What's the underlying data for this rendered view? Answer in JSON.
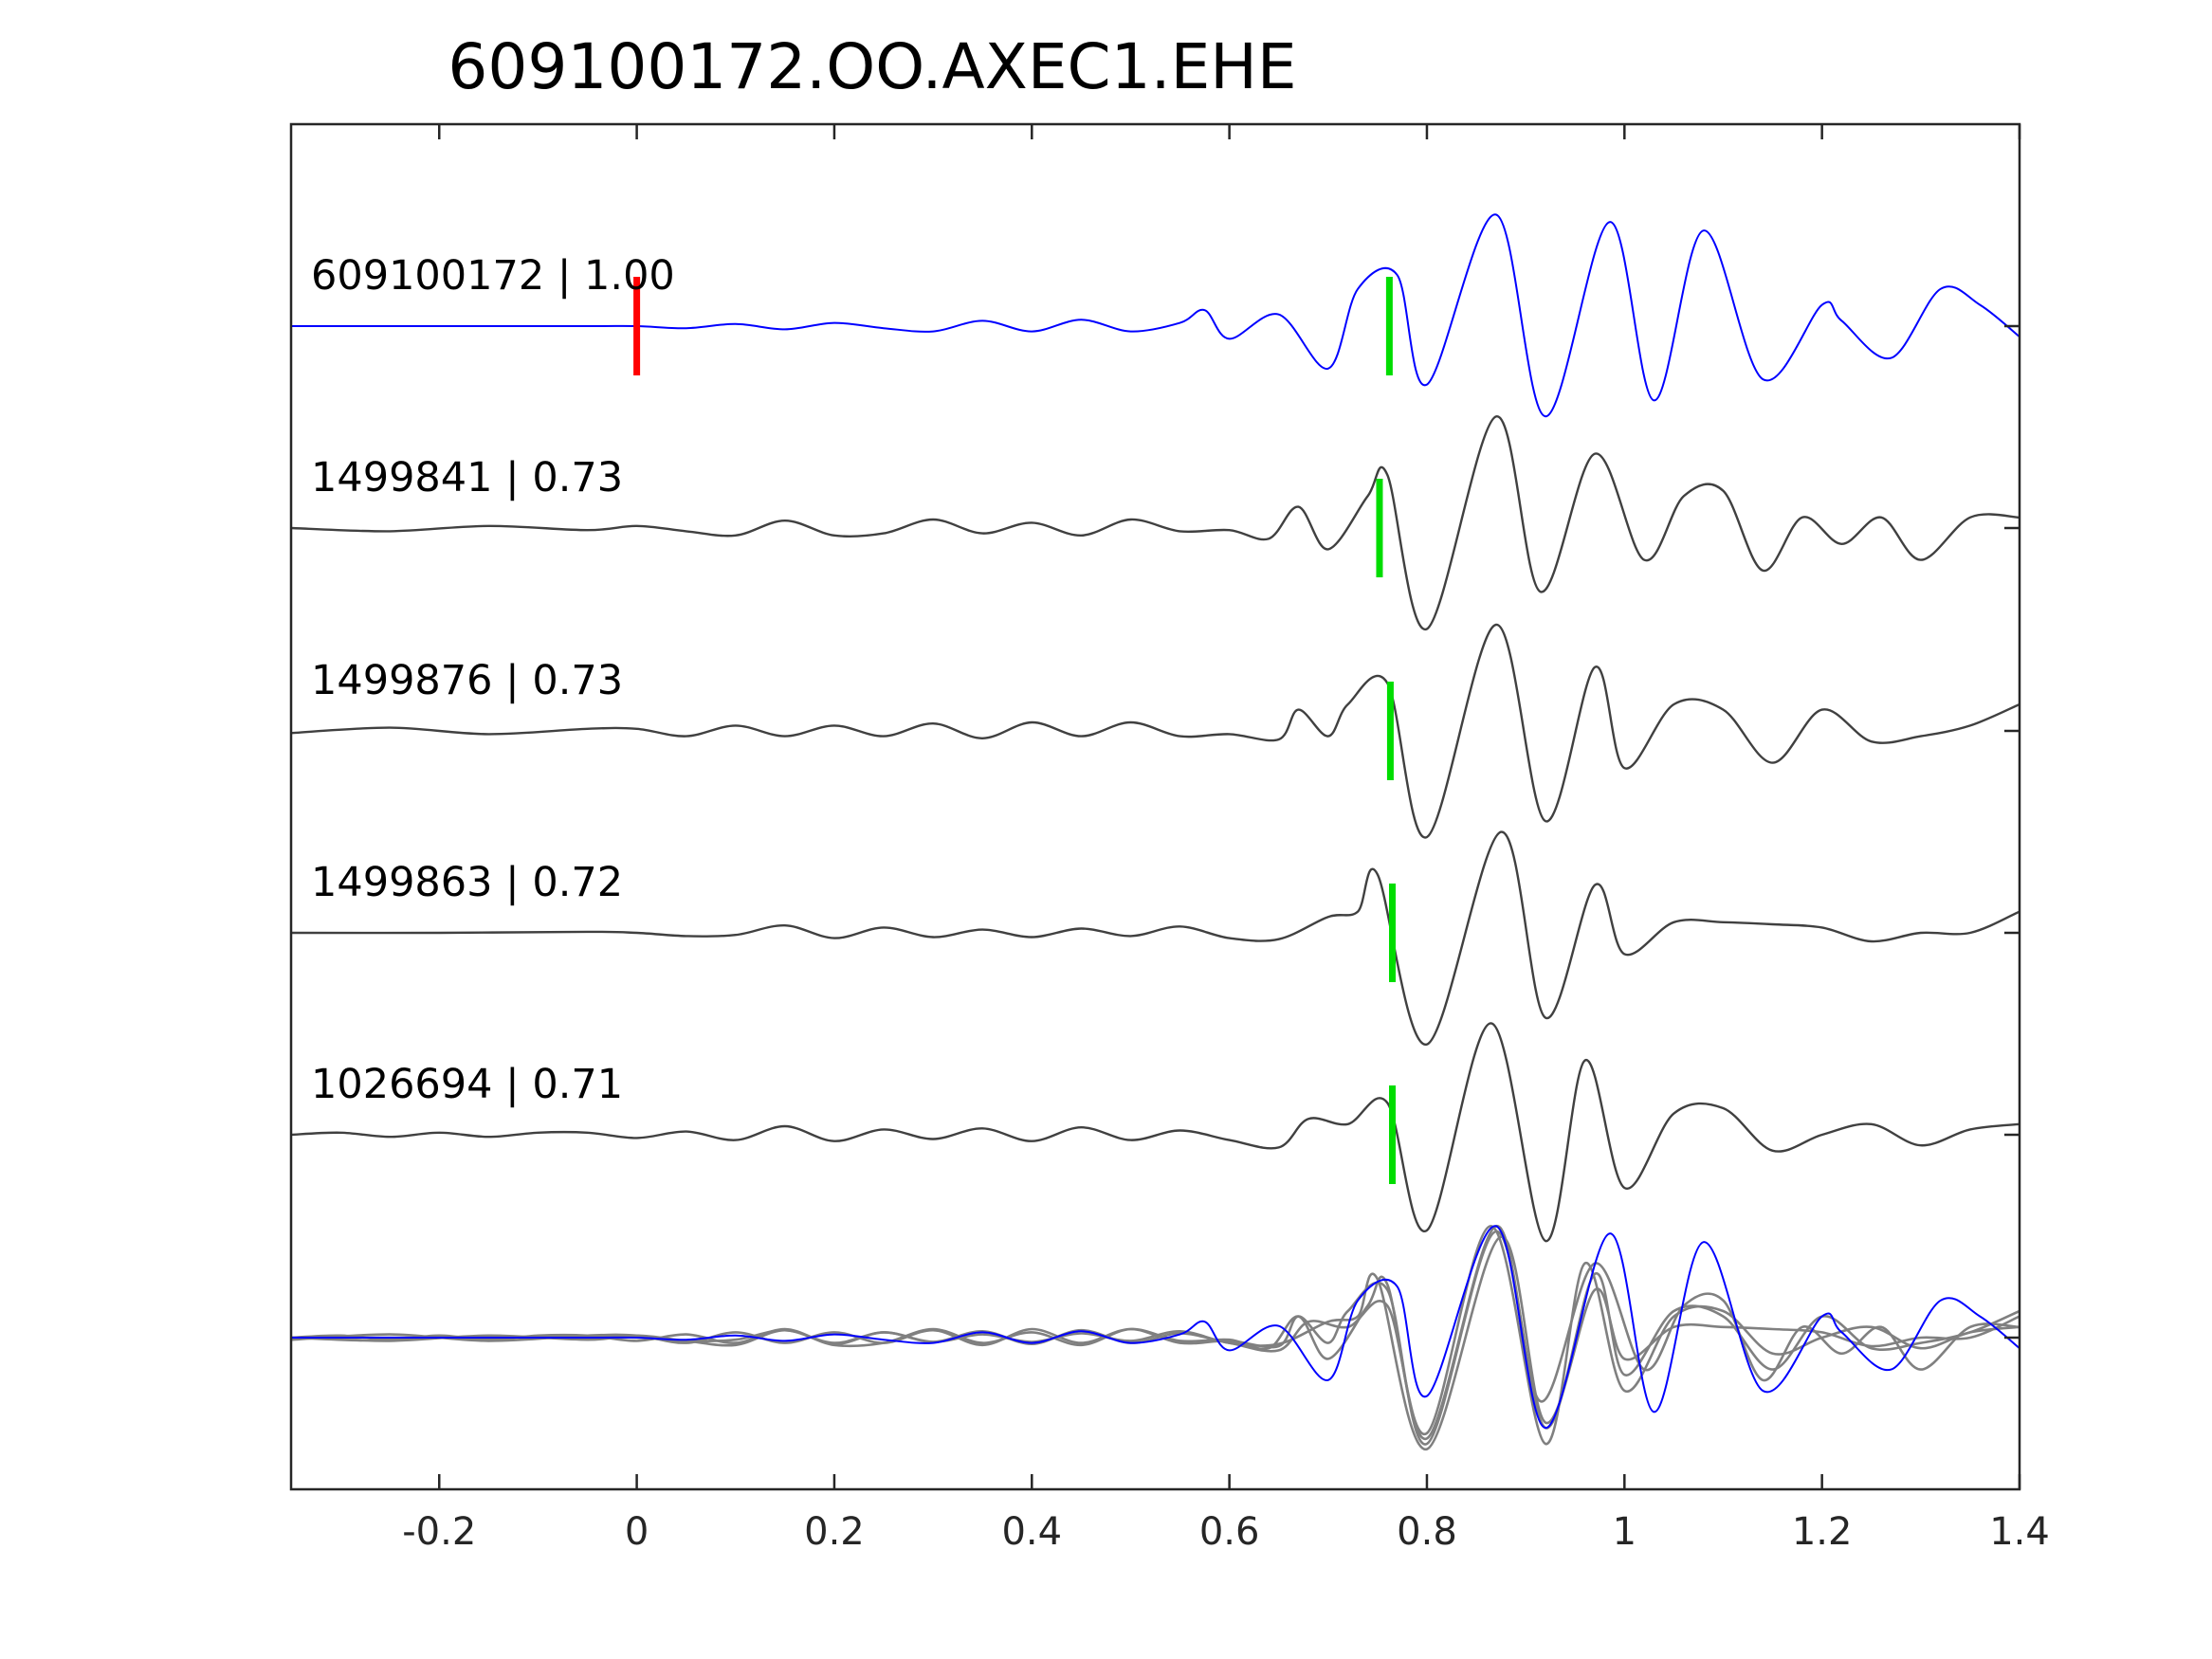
{
  "chart_data": {
    "type": "line",
    "title": "609100172.OO.AXEC1.EHE",
    "xlabel": "",
    "ylabel": "",
    "xlim": [
      -0.35,
      1.4
    ],
    "xticks": [
      -0.2,
      0,
      0.2,
      0.4,
      0.6,
      0.8,
      1,
      1.2,
      1.4
    ],
    "xtick_labels": [
      "-0.2",
      "0",
      "0.2",
      "0.4",
      "0.6",
      "0.8",
      "1",
      "1.2",
      "1.4"
    ],
    "grid": false,
    "legend": "none",
    "colors": {
      "template": "#0000ff",
      "match": "#404040",
      "overlay_match": "#808080",
      "origin_marker": "#ff0000",
      "pick_marker": "#00dd00",
      "axis": "#262626"
    },
    "traces": [
      {
        "label": "609100172 | 1.00",
        "id": "609100172",
        "cc": 1.0,
        "color": "template",
        "pick_time": 0.762,
        "origin_time": 0.0,
        "points": [
          [
            -0.35,
            0
          ],
          [
            -0.2,
            0
          ],
          [
            -0.05,
            0
          ],
          [
            0,
            0
          ],
          [
            0.05,
            -0.02
          ],
          [
            0.1,
            0.02
          ],
          [
            0.15,
            -0.03
          ],
          [
            0.2,
            0.03
          ],
          [
            0.25,
            -0.02
          ],
          [
            0.3,
            -0.05
          ],
          [
            0.35,
            0.05
          ],
          [
            0.4,
            -0.05
          ],
          [
            0.45,
            0.06
          ],
          [
            0.5,
            -0.05
          ],
          [
            0.55,
            0.03
          ],
          [
            0.575,
            0.15
          ],
          [
            0.6,
            -0.12
          ],
          [
            0.65,
            0.11
          ],
          [
            0.7,
            -0.4
          ],
          [
            0.73,
            0.35
          ],
          [
            0.77,
            0.48
          ],
          [
            0.8,
            -0.55
          ],
          [
            0.87,
            1.05
          ],
          [
            0.92,
            -0.85
          ],
          [
            0.985,
            0.98
          ],
          [
            1.03,
            -0.7
          ],
          [
            1.08,
            0.9
          ],
          [
            1.14,
            -0.5
          ],
          [
            1.2,
            0.2
          ],
          [
            1.22,
            0.05
          ],
          [
            1.27,
            -0.3
          ],
          [
            1.32,
            0.35
          ],
          [
            1.36,
            0.2
          ],
          [
            1.4,
            -0.1
          ]
        ]
      },
      {
        "label": "1499841 | 0.73",
        "id": "1499841",
        "cc": 0.73,
        "color": "match",
        "pick_time": 0.752,
        "points": [
          [
            -0.35,
            0
          ],
          [
            -0.25,
            -0.03
          ],
          [
            -0.15,
            0.02
          ],
          [
            -0.05,
            -0.02
          ],
          [
            0,
            0.02
          ],
          [
            0.05,
            -0.03
          ],
          [
            0.1,
            -0.07
          ],
          [
            0.15,
            0.07
          ],
          [
            0.2,
            -0.07
          ],
          [
            0.25,
            -0.05
          ],
          [
            0.3,
            0.08
          ],
          [
            0.35,
            -0.05
          ],
          [
            0.4,
            0.05
          ],
          [
            0.45,
            -0.07
          ],
          [
            0.5,
            0.08
          ],
          [
            0.55,
            -0.03
          ],
          [
            0.6,
            -0.02
          ],
          [
            0.64,
            -0.1
          ],
          [
            0.67,
            0.2
          ],
          [
            0.7,
            -0.2
          ],
          [
            0.74,
            0.3
          ],
          [
            0.76,
            0.5
          ],
          [
            0.8,
            -0.95
          ],
          [
            0.87,
            1.05
          ],
          [
            0.915,
            -0.6
          ],
          [
            0.97,
            0.7
          ],
          [
            1.02,
            -0.3
          ],
          [
            1.06,
            0.3
          ],
          [
            1.1,
            0.35
          ],
          [
            1.14,
            -0.4
          ],
          [
            1.18,
            0.1
          ],
          [
            1.22,
            -0.15
          ],
          [
            1.26,
            0.1
          ],
          [
            1.3,
            -0.3
          ],
          [
            1.35,
            0.1
          ],
          [
            1.4,
            0.1
          ]
        ]
      },
      {
        "label": "1499876 | 0.73",
        "id": "1499876",
        "cc": 0.73,
        "color": "match",
        "pick_time": 0.763,
        "points": [
          [
            -0.35,
            -0.02
          ],
          [
            -0.25,
            0.03
          ],
          [
            -0.15,
            -0.03
          ],
          [
            -0.05,
            0.02
          ],
          [
            0,
            0.02
          ],
          [
            0.05,
            -0.05
          ],
          [
            0.1,
            0.05
          ],
          [
            0.15,
            -0.05
          ],
          [
            0.2,
            0.05
          ],
          [
            0.25,
            -0.05
          ],
          [
            0.3,
            0.07
          ],
          [
            0.35,
            -0.07
          ],
          [
            0.4,
            0.08
          ],
          [
            0.45,
            -0.05
          ],
          [
            0.5,
            0.08
          ],
          [
            0.55,
            -0.05
          ],
          [
            0.6,
            -0.03
          ],
          [
            0.65,
            -0.08
          ],
          [
            0.67,
            0.2
          ],
          [
            0.7,
            -0.05
          ],
          [
            0.72,
            0.25
          ],
          [
            0.76,
            0.45
          ],
          [
            0.8,
            -1.0
          ],
          [
            0.87,
            1.0
          ],
          [
            0.92,
            -0.85
          ],
          [
            0.97,
            0.6
          ],
          [
            1.0,
            -0.35
          ],
          [
            1.05,
            0.25
          ],
          [
            1.1,
            0.2
          ],
          [
            1.15,
            -0.3
          ],
          [
            1.2,
            0.2
          ],
          [
            1.25,
            -0.1
          ],
          [
            1.3,
            -0.05
          ],
          [
            1.35,
            0.05
          ],
          [
            1.4,
            0.25
          ]
        ]
      },
      {
        "label": "1499863 | 0.72",
        "id": "1499863",
        "cc": 0.72,
        "color": "match",
        "pick_time": 0.765,
        "points": [
          [
            -0.35,
            0
          ],
          [
            -0.2,
            0
          ],
          [
            -0.05,
            0.01
          ],
          [
            0,
            0
          ],
          [
            0.05,
            -0.03
          ],
          [
            0.1,
            -0.02
          ],
          [
            0.15,
            0.07
          ],
          [
            0.2,
            -0.05
          ],
          [
            0.25,
            0.05
          ],
          [
            0.3,
            -0.04
          ],
          [
            0.35,
            0.03
          ],
          [
            0.4,
            -0.04
          ],
          [
            0.45,
            0.04
          ],
          [
            0.5,
            -0.03
          ],
          [
            0.55,
            0.06
          ],
          [
            0.6,
            -0.05
          ],
          [
            0.65,
            -0.06
          ],
          [
            0.7,
            0.15
          ],
          [
            0.73,
            0.2
          ],
          [
            0.75,
            0.55
          ],
          [
            0.8,
            -1.05
          ],
          [
            0.875,
            0.95
          ],
          [
            0.92,
            -0.8
          ],
          [
            0.97,
            0.45
          ],
          [
            1.0,
            -0.2
          ],
          [
            1.05,
            0.1
          ],
          [
            1.1,
            0.1
          ],
          [
            1.15,
            0.08
          ],
          [
            1.2,
            0.05
          ],
          [
            1.25,
            -0.08
          ],
          [
            1.3,
            0.0
          ],
          [
            1.35,
            0.0
          ],
          [
            1.4,
            0.2
          ]
        ]
      },
      {
        "label": "1026694 | 0.71",
        "id": "1026694",
        "cc": 0.71,
        "color": "match",
        "pick_time": 0.765,
        "points": [
          [
            -0.35,
            0
          ],
          [
            -0.3,
            0.02
          ],
          [
            -0.25,
            -0.02
          ],
          [
            -0.2,
            0.02
          ],
          [
            -0.15,
            -0.02
          ],
          [
            -0.1,
            0.02
          ],
          [
            -0.05,
            0.02
          ],
          [
            0,
            -0.03
          ],
          [
            0.05,
            0.03
          ],
          [
            0.1,
            -0.05
          ],
          [
            0.15,
            0.08
          ],
          [
            0.2,
            -0.06
          ],
          [
            0.25,
            0.05
          ],
          [
            0.3,
            -0.04
          ],
          [
            0.35,
            0.06
          ],
          [
            0.4,
            -0.06
          ],
          [
            0.45,
            0.07
          ],
          [
            0.5,
            -0.05
          ],
          [
            0.55,
            0.04
          ],
          [
            0.6,
            -0.05
          ],
          [
            0.65,
            -0.12
          ],
          [
            0.68,
            0.15
          ],
          [
            0.72,
            0.1
          ],
          [
            0.76,
            0.3
          ],
          [
            0.8,
            -0.9
          ],
          [
            0.865,
            1.05
          ],
          [
            0.92,
            -1.0
          ],
          [
            0.96,
            0.7
          ],
          [
            1.0,
            -0.5
          ],
          [
            1.05,
            0.2
          ],
          [
            1.1,
            0.25
          ],
          [
            1.15,
            -0.15
          ],
          [
            1.2,
            0.0
          ],
          [
            1.25,
            0.1
          ],
          [
            1.3,
            -0.1
          ],
          [
            1.35,
            0.05
          ],
          [
            1.4,
            0.1
          ]
        ]
      }
    ],
    "overlay": {
      "description_visible": false,
      "includes": [
        "609100172",
        "1499841",
        "1499876",
        "1499863",
        "1026694"
      ]
    },
    "markers": {
      "origin": {
        "time": 0.0,
        "trace": "609100172"
      },
      "picks": [
        {
          "trace": "609100172",
          "time": 0.762
        },
        {
          "trace": "1499841",
          "time": 0.752
        },
        {
          "trace": "1499876",
          "time": 0.763
        },
        {
          "trace": "1499863",
          "time": 0.765
        },
        {
          "trace": "1026694",
          "time": 0.765
        }
      ]
    }
  }
}
